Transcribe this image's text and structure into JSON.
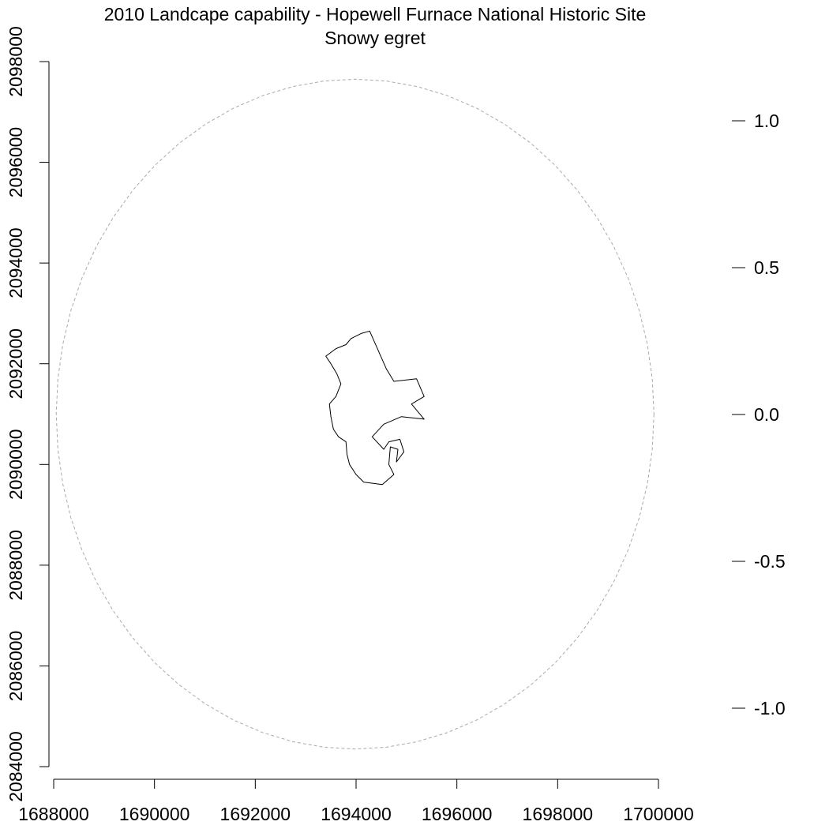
{
  "chart_data": {
    "type": "map",
    "title": "2010 Landcape capability - Hopewell Furnace National Historic Site",
    "subtitle": "Snowy egret",
    "xlabel": "",
    "ylabel": "",
    "xlim": [
      1688000,
      1700000
    ],
    "ylim": [
      2084000,
      2098000
    ],
    "x_ticks": [
      1688000,
      1690000,
      1692000,
      1694000,
      1696000,
      1698000,
      1700000
    ],
    "y_ticks": [
      2084000,
      2086000,
      2088000,
      2090000,
      2092000,
      2094000,
      2096000,
      2098000
    ],
    "x_tick_labels": [
      "1688000",
      "1690000",
      "1692000",
      "1694000",
      "1696000",
      "1698000",
      "1700000"
    ],
    "y_tick_labels": [
      "2084000",
      "2086000",
      "2088000",
      "2090000",
      "2092000",
      "2094000",
      "2096000",
      "2098000"
    ],
    "grid": false,
    "buffer_circle": {
      "center": [
        1693980,
        2091000
      ],
      "radius_x": 5930,
      "radius_y": 6650,
      "line_style": "dashed",
      "color": "#aaaaaa"
    },
    "park_boundary": {
      "color": "#000000",
      "points": [
        [
          1694270,
          2092650
        ],
        [
          1694100,
          2092600
        ],
        [
          1693900,
          2092500
        ],
        [
          1693800,
          2092380
        ],
        [
          1693600,
          2092300
        ],
        [
          1693400,
          2092150
        ],
        [
          1693500,
          2092000
        ],
        [
          1693620,
          2091800
        ],
        [
          1693700,
          2091600
        ],
        [
          1693600,
          2091350
        ],
        [
          1693470,
          2091200
        ],
        [
          1693500,
          2090950
        ],
        [
          1693550,
          2090700
        ],
        [
          1693650,
          2090550
        ],
        [
          1693800,
          2090450
        ],
        [
          1693820,
          2090200
        ],
        [
          1693870,
          2090000
        ],
        [
          1694000,
          2089800
        ],
        [
          1694150,
          2089650
        ],
        [
          1694520,
          2089600
        ],
        [
          1694750,
          2089800
        ],
        [
          1694650,
          2090000
        ],
        [
          1694680,
          2090350
        ],
        [
          1694830,
          2090300
        ],
        [
          1694800,
          2090050
        ],
        [
          1694950,
          2090250
        ],
        [
          1694870,
          2090500
        ],
        [
          1694650,
          2090450
        ],
        [
          1694550,
          2090300
        ],
        [
          1694320,
          2090550
        ],
        [
          1694550,
          2090800
        ],
        [
          1694900,
          2090950
        ],
        [
          1695350,
          2090900
        ],
        [
          1695100,
          2091200
        ],
        [
          1695350,
          2091350
        ],
        [
          1695200,
          2091700
        ],
        [
          1694750,
          2091650
        ],
        [
          1694600,
          2091900
        ],
        [
          1694270,
          2092650
        ]
      ]
    },
    "legend": {
      "placement": "right",
      "values": [
        1.0,
        0.5,
        0.0,
        -0.5,
        -1.0
      ],
      "labels": [
        "1.0",
        "0.5",
        "0.0",
        "-0.5",
        "-1.0"
      ]
    }
  }
}
